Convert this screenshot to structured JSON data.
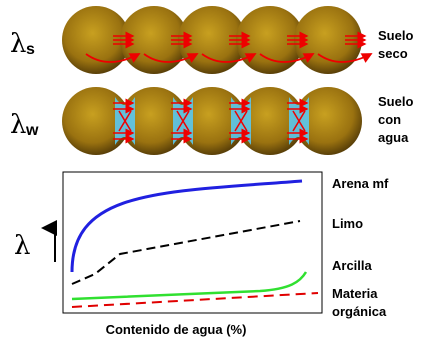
{
  "rows": [
    {
      "symbol": "λ",
      "subscript": "s",
      "label_lines": [
        "Suelo",
        "seco"
      ]
    },
    {
      "symbol": "λ",
      "subscript": "w",
      "label_lines": [
        "Suelo",
        "con",
        "agua"
      ]
    }
  ],
  "chart": {
    "y_symbol": "λ",
    "x_label": "Contenido de agua (%)",
    "curves": [
      {
        "label_lines": [
          "Arena mf"
        ]
      },
      {
        "label_lines": [
          "Limo"
        ]
      },
      {
        "label_lines": [
          "Arcilla"
        ]
      },
      {
        "label_lines": [
          "Materia",
          "orgánica"
        ]
      }
    ]
  }
}
